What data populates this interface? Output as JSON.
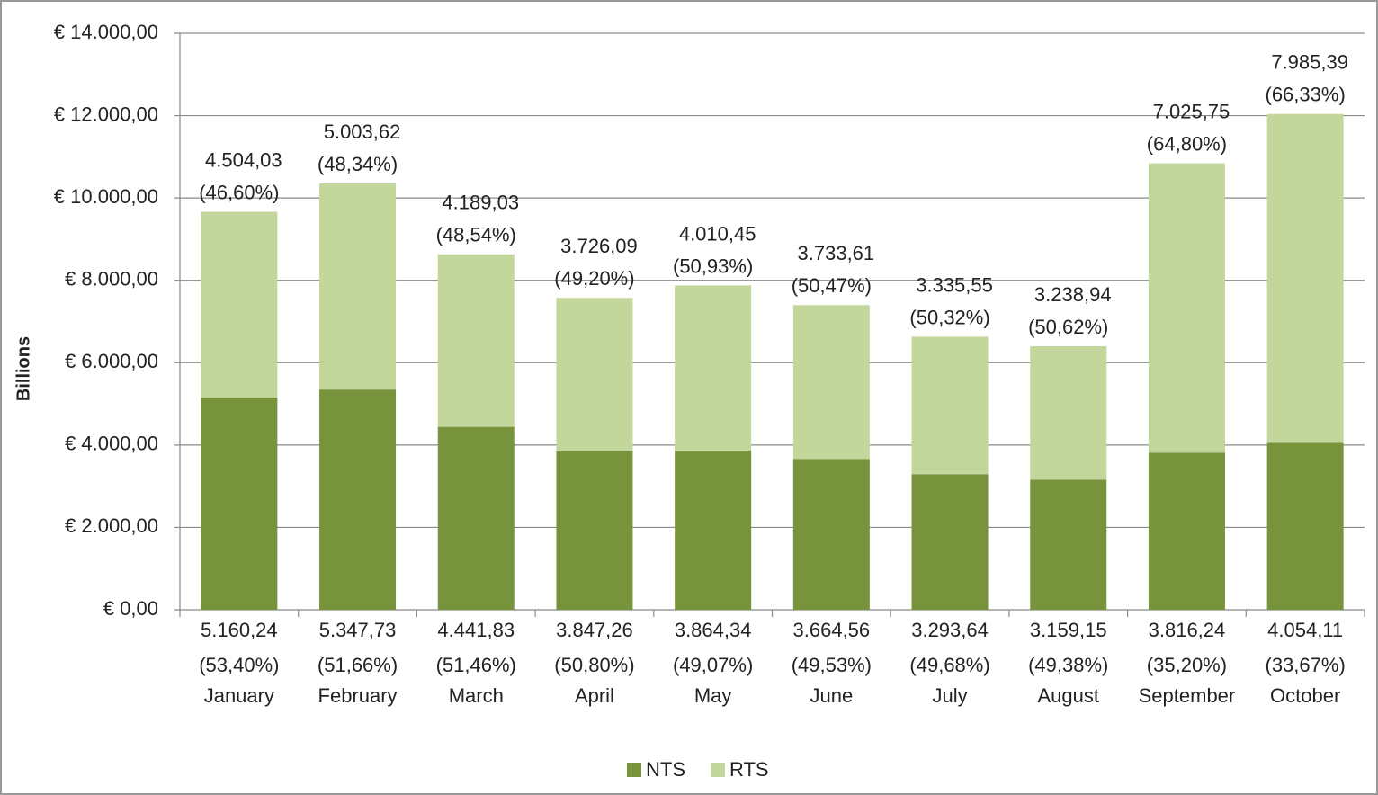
{
  "chart_data": {
    "type": "stacked_bar",
    "y_label": "Billions",
    "categories": [
      "January",
      "February",
      "March",
      "April",
      "May",
      "June",
      "July",
      "August",
      "September",
      "October"
    ],
    "series": [
      {
        "name": "NTS",
        "color": "#77933c",
        "values": [
          5160.24,
          5347.73,
          4441.83,
          3847.26,
          3864.34,
          3664.56,
          3293.64,
          3159.15,
          3816.24,
          4054.11
        ],
        "value_labels": [
          "5.160,24",
          "5.347,73",
          "4.441,83",
          "3.847,26",
          "3.864,34",
          "3.664,56",
          "3.293,64",
          "3.159,15",
          "3.816,24",
          "4.054,11"
        ],
        "share_labels": [
          "(53,40%)",
          "(51,66%)",
          "(51,46%)",
          "(50,80%)",
          "(49,07%)",
          "(49,53%)",
          "(49,68%)",
          "(49,38%)",
          "(35,20%)",
          "(33,67%)"
        ]
      },
      {
        "name": "RTS",
        "color": "#c3d69b",
        "values": [
          4504.03,
          5003.62,
          4189.03,
          3726.09,
          4010.45,
          3733.61,
          3335.55,
          3238.94,
          7025.75,
          7985.39
        ],
        "value_labels": [
          "4.504,03",
          "5.003,62",
          "4.189,03",
          "3.726,09",
          "4.010,45",
          "3.733,61",
          "3.335,55",
          "3.238,94",
          "7.025,75",
          "7.985,39"
        ],
        "share_labels": [
          "(46,60%)",
          "(48,34%)",
          "(48,54%)",
          "(49,20%)",
          "(50,93%)",
          "(50,47%)",
          "(50,32%)",
          "(50,62%)",
          "(64,80%)",
          "(66,33%)"
        ]
      }
    ],
    "ylim": [
      0,
      14000
    ],
    "yticks": [
      {
        "value": 0,
        "label": "€ 0,00"
      },
      {
        "value": 2000,
        "label": "€ 2.000,00"
      },
      {
        "value": 4000,
        "label": "€ 4.000,00"
      },
      {
        "value": 6000,
        "label": "€ 6.000,00"
      },
      {
        "value": 8000,
        "label": "€ 8.000,00"
      },
      {
        "value": 10000,
        "label": "€ 10.000,00"
      },
      {
        "value": 12000,
        "label": "€ 12.000,00"
      },
      {
        "value": 14000,
        "label": "€ 14.000,00"
      }
    ],
    "grid": true,
    "legend": "bottom"
  }
}
